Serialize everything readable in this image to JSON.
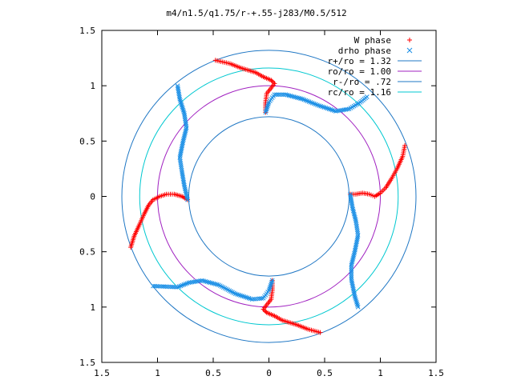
{
  "chart_data": {
    "type": "scatter",
    "title": "m4/n1.5/q1.75/r-+.55-j283/M0.5/512",
    "xlim": [
      -1.5,
      1.5
    ],
    "ylim": [
      -1.5,
      1.5
    ],
    "xticks": [
      {
        "v": -1.5,
        "label": "1.5"
      },
      {
        "v": -1,
        "label": "1"
      },
      {
        "v": -0.5,
        "label": "0.5"
      },
      {
        "v": 0,
        "label": "0"
      },
      {
        "v": 0.5,
        "label": "0.5"
      },
      {
        "v": 1,
        "label": "1"
      },
      {
        "v": 1.5,
        "label": "1.5"
      }
    ],
    "yticks": [
      {
        "v": 1.5,
        "label": "1.5"
      },
      {
        "v": 1,
        "label": "1"
      },
      {
        "v": 0.5,
        "label": "0.5"
      },
      {
        "v": 0,
        "label": "0"
      },
      {
        "v": -0.5,
        "label": "0.5"
      },
      {
        "v": -1,
        "label": "1"
      },
      {
        "v": -1.5,
        "label": "1.5"
      }
    ],
    "grid": false,
    "legend_position": "top-right",
    "circles": [
      {
        "name": "r+/ro = 1.32",
        "r": 1.32,
        "color": "#1f77c4"
      },
      {
        "name": "ro/ro = 1.00",
        "r": 1.0,
        "color": "#a020c0"
      },
      {
        "name": "r-/ro = .72",
        "r": 0.72,
        "color": "#1f77c4"
      },
      {
        "name": "rc/ro = 1.16",
        "r": 1.16,
        "color": "#00c8d0"
      }
    ],
    "series": [
      {
        "name": "W phase",
        "marker": "+",
        "color": "#ff0000",
        "arms": [
          [
            [
              -0.48,
              1.23
            ],
            [
              -0.35,
              1.2
            ],
            [
              -0.25,
              1.16
            ],
            [
              -0.12,
              1.12
            ],
            [
              -0.05,
              1.08
            ],
            [
              0.02,
              1.05
            ],
            [
              0.05,
              1.02
            ],
            [
              0.02,
              0.98
            ],
            [
              -0.02,
              0.93
            ],
            [
              -0.03,
              0.85
            ],
            [
              -0.03,
              0.76
            ]
          ],
          [
            [
              1.22,
              0.46
            ],
            [
              1.2,
              0.36
            ],
            [
              1.15,
              0.25
            ],
            [
              1.1,
              0.16
            ],
            [
              1.05,
              0.08
            ],
            [
              1.0,
              0.03
            ],
            [
              0.95,
              0.0
            ],
            [
              0.9,
              0.02
            ],
            [
              0.84,
              0.03
            ],
            [
              0.78,
              0.02
            ],
            [
              0.73,
              0.02
            ]
          ],
          [
            [
              0.46,
              -1.23
            ],
            [
              0.35,
              -1.2
            ],
            [
              0.25,
              -1.16
            ],
            [
              0.12,
              -1.12
            ],
            [
              0.05,
              -1.08
            ],
            [
              -0.02,
              -1.05
            ],
            [
              -0.05,
              -1.02
            ],
            [
              -0.02,
              -0.98
            ],
            [
              0.02,
              -0.93
            ],
            [
              0.03,
              -0.85
            ],
            [
              0.03,
              -0.76
            ]
          ],
          [
            [
              -1.24,
              -0.46
            ],
            [
              -1.21,
              -0.36
            ],
            [
              -1.16,
              -0.25
            ],
            [
              -1.12,
              -0.16
            ],
            [
              -1.08,
              -0.08
            ],
            [
              -1.04,
              -0.03
            ],
            [
              -0.98,
              0.0
            ],
            [
              -0.92,
              0.02
            ],
            [
              -0.85,
              0.02
            ],
            [
              -0.78,
              0.0
            ],
            [
              -0.73,
              -0.03
            ]
          ]
        ]
      },
      {
        "name": "drho phase",
        "marker": "x",
        "color": "#1a8fe6",
        "arms": [
          [
            [
              -0.03,
              0.76
            ],
            [
              0.0,
              0.85
            ],
            [
              0.05,
              0.92
            ],
            [
              0.15,
              0.92
            ],
            [
              0.3,
              0.88
            ],
            [
              0.45,
              0.82
            ],
            [
              0.6,
              0.77
            ],
            [
              0.72,
              0.79
            ],
            [
              0.82,
              0.85
            ],
            [
              0.88,
              0.9
            ]
          ],
          [
            [
              0.73,
              0.02
            ],
            [
              0.75,
              -0.1
            ],
            [
              0.78,
              -0.22
            ],
            [
              0.8,
              -0.35
            ],
            [
              0.77,
              -0.5
            ],
            [
              0.74,
              -0.62
            ],
            [
              0.74,
              -0.75
            ],
            [
              0.77,
              -0.9
            ],
            [
              0.8,
              -1.0
            ]
          ],
          [
            [
              0.03,
              -0.76
            ],
            [
              0.0,
              -0.85
            ],
            [
              -0.05,
              -0.92
            ],
            [
              -0.15,
              -0.93
            ],
            [
              -0.3,
              -0.88
            ],
            [
              -0.45,
              -0.8
            ],
            [
              -0.6,
              -0.76
            ],
            [
              -0.72,
              -0.78
            ],
            [
              -0.82,
              -0.82
            ],
            [
              -1.04,
              -0.81
            ]
          ],
          [
            [
              -0.73,
              -0.03
            ],
            [
              -0.76,
              0.1
            ],
            [
              -0.78,
              0.22
            ],
            [
              -0.8,
              0.35
            ],
            [
              -0.77,
              0.5
            ],
            [
              -0.74,
              0.62
            ],
            [
              -0.76,
              0.75
            ],
            [
              -0.8,
              0.88
            ],
            [
              -0.82,
              1.0
            ]
          ]
        ]
      }
    ]
  }
}
